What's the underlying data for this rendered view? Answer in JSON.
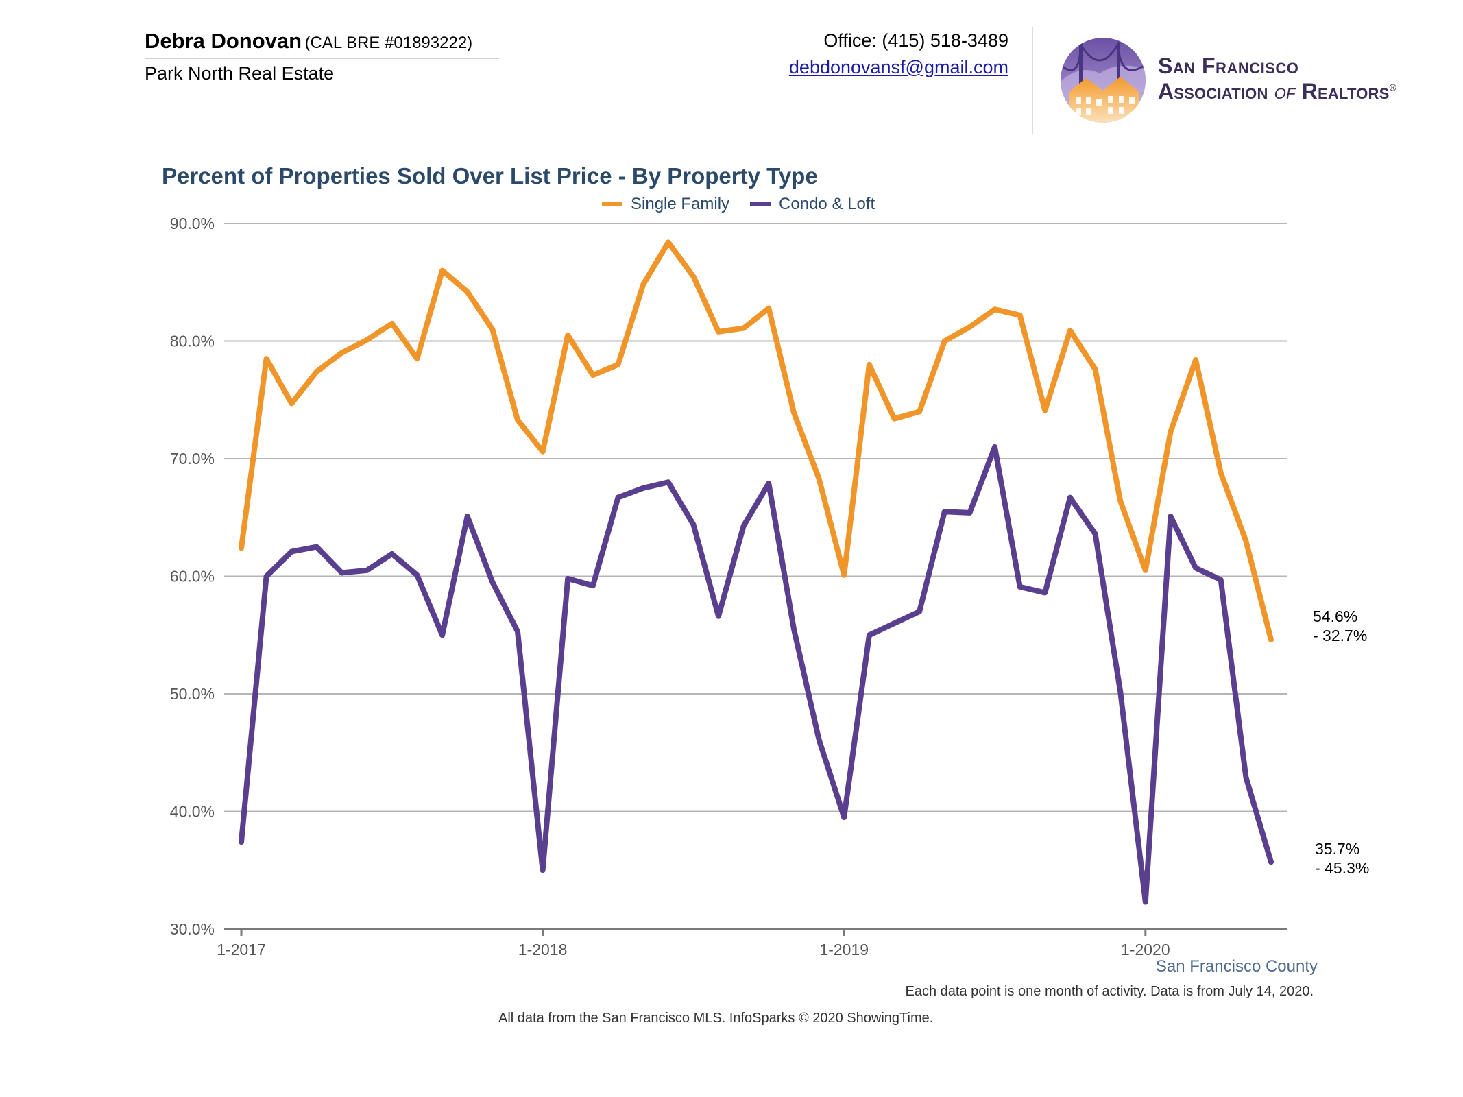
{
  "header": {
    "agent_name": "Debra Donovan",
    "agent_license": "(CAL BRE #01893222)",
    "agent_firm": "Park North Real Estate",
    "office_phone": "Office: (415) 518-3489",
    "email": "debdonovansf@gmail.com",
    "logo_line1": "San Francisco",
    "logo_line2_a": "Association",
    "logo_line2_of": "of",
    "logo_line2_b": "Realtors",
    "logo_reg": "®"
  },
  "colors": {
    "single_family": "#f0952a",
    "condo_loft": "#5a3f8f",
    "grid": "#b5b5b5",
    "axis": "#7a7a7a",
    "title": "#2b4a6a"
  },
  "chart_data": {
    "type": "line",
    "title": "Percent of Properties Sold Over List Price - By Property Type",
    "xlabel": "",
    "ylabel": "",
    "ylim": [
      30,
      90
    ],
    "y_ticks": [
      "30.0%",
      "40.0%",
      "50.0%",
      "60.0%",
      "70.0%",
      "80.0%",
      "90.0%"
    ],
    "y_tick_values": [
      30,
      40,
      50,
      60,
      70,
      80,
      90
    ],
    "x_ticks": [
      "1-2017",
      "1-2018",
      "1-2019",
      "1-2020"
    ],
    "x_tick_months": [
      "2017-01",
      "2018-01",
      "2019-01",
      "2020-01"
    ],
    "x_months": [
      "2017-01",
      "2017-02",
      "2017-03",
      "2017-04",
      "2017-05",
      "2017-06",
      "2017-07",
      "2017-08",
      "2017-09",
      "2017-10",
      "2017-11",
      "2017-12",
      "2018-01",
      "2018-02",
      "2018-03",
      "2018-04",
      "2018-05",
      "2018-06",
      "2018-07",
      "2018-08",
      "2018-09",
      "2018-10",
      "2018-11",
      "2018-12",
      "2019-01",
      "2019-02",
      "2019-03",
      "2019-04",
      "2019-05",
      "2019-06",
      "2019-07",
      "2019-08",
      "2019-09",
      "2019-10",
      "2019-11",
      "2019-12",
      "2020-01",
      "2020-02",
      "2020-03",
      "2020-04",
      "2020-05",
      "2020-06"
    ],
    "grid": true,
    "legend_position": "top-center",
    "series": [
      {
        "name": "Single Family",
        "color": "#f0952a",
        "values": [
          62.4,
          78.5,
          74.7,
          77.4,
          79.0,
          80.1,
          81.5,
          78.5,
          86.0,
          84.2,
          81.0,
          73.3,
          70.6,
          80.5,
          77.1,
          78.0,
          84.8,
          88.4,
          85.5,
          80.8,
          81.1,
          82.8,
          73.9,
          68.3,
          60.1,
          78.0,
          73.4,
          74.0,
          80.0,
          81.2,
          82.7,
          82.2,
          74.1,
          80.9,
          77.6,
          66.4,
          60.5,
          72.3,
          78.4,
          68.8,
          63.0,
          54.6
        ]
      },
      {
        "name": "Condo & Loft",
        "color": "#5a3f8f",
        "values": [
          37.4,
          60.0,
          62.1,
          62.5,
          60.3,
          60.5,
          61.9,
          60.1,
          55.0,
          65.1,
          59.5,
          55.3,
          35.0,
          59.8,
          59.2,
          66.7,
          67.5,
          68.0,
          64.4,
          56.6,
          64.3,
          67.9,
          55.5,
          46.1,
          39.5,
          55.0,
          56.0,
          57.0,
          65.5,
          65.4,
          71.0,
          59.1,
          58.6,
          66.7,
          63.6,
          50.2,
          32.3,
          65.1,
          60.7,
          59.7,
          42.9,
          35.7
        ]
      }
    ],
    "annotations": [
      {
        "series": "Single Family",
        "value": "54.6%",
        "change": "- 32.7%"
      },
      {
        "series": "Condo & Loft",
        "value": "35.7%",
        "change": "- 45.3%"
      }
    ]
  },
  "footer": {
    "county": "San Francisco County",
    "note": "Each data point is one month of activity. Data is from July 14, 2020.",
    "source": "All data from the San Francisco MLS. InfoSparks © 2020 ShowingTime."
  }
}
